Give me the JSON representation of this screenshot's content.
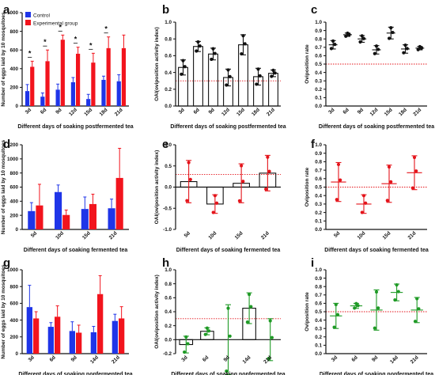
{
  "figure": {
    "background": "#ffffff"
  },
  "colors": {
    "control": "#1f35e8",
    "experimental": "#f2141d",
    "black": "#111111",
    "red": "#e4141b",
    "green": "#1f9a26",
    "threshold": "#e4141b"
  },
  "chart_data": [
    {
      "panel": "a",
      "type": "bar",
      "ylabel": "Number of eggs laid by 10 mosquitoes",
      "xlabel": "Different days of soaking  postfermented tea",
      "ylim": [
        0,
        1000
      ],
      "yticks": [
        "0",
        "200",
        "400",
        "600",
        "800",
        "1000"
      ],
      "categories": [
        "3d",
        "6d",
        "9d",
        "12d",
        "15d",
        "18d",
        "21d"
      ],
      "legend": [
        "Control",
        "Experimental group"
      ],
      "legend_position": "top-left",
      "series": [
        {
          "name": "Control",
          "values": [
            160,
            100,
            175,
            255,
            75,
            280,
            265
          ],
          "errors": [
            70,
            40,
            60,
            50,
            50,
            40,
            70
          ]
        },
        {
          "name": "Experimental group",
          "values": [
            420,
            480,
            710,
            560,
            465,
            620,
            620
          ],
          "errors": [
            60,
            120,
            50,
            70,
            100,
            120,
            140
          ]
        }
      ],
      "significance": [
        "*",
        "*",
        "*",
        "*",
        "*",
        "*",
        ""
      ]
    },
    {
      "panel": "b",
      "type": "bar",
      "ylabel": "OAI(oviposition activity index)",
      "xlabel": "Different days of soaking   postfermented tea",
      "ylim": [
        0,
        1.0
      ],
      "yticks": [
        "0.0",
        "0.2",
        "0.4",
        "0.6",
        "0.8",
        "1.0"
      ],
      "categories": [
        "3d",
        "6d",
        "9d",
        "12d",
        "15d",
        "18d",
        "21d"
      ],
      "values": [
        0.46,
        0.71,
        0.62,
        0.34,
        0.73,
        0.35,
        0.39
      ],
      "errors": [
        0.09,
        0.06,
        0.07,
        0.1,
        0.12,
        0.1,
        0.04
      ],
      "threshold": 0.3,
      "color": "black"
    },
    {
      "panel": "c",
      "type": "scatter",
      "ylabel": "Oviposition rate",
      "xlabel": "Different days of soaking   postfermented tea",
      "ylim": [
        0,
        1.0
      ],
      "yticks": [
        "0.0",
        "0.1",
        "0.2",
        "0.3",
        "0.4",
        "0.5",
        "0.6",
        "0.7",
        "0.8",
        "0.9",
        "1.0"
      ],
      "categories": [
        "3d",
        "6d",
        "9d",
        "12d",
        "15d",
        "18d",
        "21d"
      ],
      "values": [
        0.73,
        0.85,
        0.8,
        0.67,
        0.87,
        0.68,
        0.69
      ],
      "errors": [
        0.05,
        0.02,
        0.04,
        0.05,
        0.07,
        0.05,
        0.02
      ],
      "threshold": 0.5,
      "color": "black"
    },
    {
      "panel": "d",
      "type": "bar",
      "ylabel": "Number of eggs laid by 10 mosquitoes",
      "xlabel": "Different days of soaking fermented tea",
      "ylim": [
        0,
        1200
      ],
      "yticks": [
        "0",
        "200",
        "400",
        "600",
        "800",
        "1000",
        "1200"
      ],
      "categories": [
        "5d",
        "10d",
        "15d",
        "21d"
      ],
      "series": [
        {
          "name": "Control",
          "values": [
            260,
            530,
            290,
            300
          ],
          "errors": [
            120,
            100,
            170,
            130
          ]
        },
        {
          "name": "Experimental group",
          "values": [
            340,
            205,
            360,
            730
          ],
          "errors": [
            300,
            70,
            140,
            420
          ]
        }
      ]
    },
    {
      "panel": "e",
      "type": "bar",
      "ylabel": "OAI(oviposition activity index)",
      "xlabel": "Different days of soaking fermented tea",
      "ylim": [
        -1.0,
        1.0
      ],
      "yticks": [
        "-1.0",
        "-0.5",
        "0.0",
        "0.5",
        "1.0"
      ],
      "categories": [
        "5d",
        "10d",
        "15d",
        "21d"
      ],
      "values": [
        0.13,
        -0.4,
        0.09,
        0.33
      ],
      "errors": [
        0.5,
        0.22,
        0.46,
        0.42
      ],
      "threshold": 0.3,
      "color": "red"
    },
    {
      "panel": "f",
      "type": "scatter",
      "ylabel": "Oviposition rate",
      "xlabel": "Different days of soaking fermented tea",
      "ylim": [
        0,
        1.0
      ],
      "yticks": [
        "0.0",
        "0.1",
        "0.2",
        "0.3",
        "0.4",
        "0.5",
        "0.6",
        "0.7",
        "0.8",
        "0.9",
        "1.0"
      ],
      "categories": [
        "5d",
        "10d",
        "15d",
        "21d"
      ],
      "values": [
        0.56,
        0.3,
        0.54,
        0.67
      ],
      "errors": [
        0.23,
        0.11,
        0.22,
        0.2
      ],
      "threshold": 0.5,
      "color": "red"
    },
    {
      "panel": "g",
      "type": "bar",
      "ylabel": "Number of eggs laid by 10 mosquitoes",
      "xlabel": "Different days of soaking nonfermented tea",
      "ylim": [
        0,
        1000
      ],
      "yticks": [
        "0",
        "200",
        "400",
        "600",
        "800",
        "1000"
      ],
      "categories": [
        "3d",
        "6d",
        "9d",
        "14d",
        "21d"
      ],
      "series": [
        {
          "name": "Control",
          "values": [
            555,
            320,
            270,
            255,
            390
          ],
          "errors": [
            260,
            50,
            110,
            70,
            80
          ]
        },
        {
          "name": "Experimental group",
          "values": [
            420,
            440,
            250,
            710,
            420
          ],
          "errors": [
            80,
            130,
            90,
            220,
            140
          ]
        }
      ]
    },
    {
      "panel": "h",
      "type": "bar",
      "ylabel": "OAI(oviposition activity index)",
      "xlabel": "Different days of soaking nonfermented tea",
      "ylim": [
        -0.2,
        1.0
      ],
      "yticks": [
        "-0.2",
        "0.0",
        "0.2",
        "0.4",
        "0.6",
        "0.8",
        "1.0"
      ],
      "categories": [
        "3d",
        "6d",
        "9d",
        "14d",
        "21d"
      ],
      "values": [
        -0.07,
        0.12,
        0.0,
        0.45,
        0.0
      ],
      "errors": [
        0.12,
        0.05,
        0.5,
        0.22,
        0.3
      ],
      "threshold": 0.3,
      "color": "green"
    },
    {
      "panel": "i",
      "type": "scatter",
      "ylabel": "Oviposition rate",
      "xlabel": "Different days of soaking nonfermented tea",
      "ylim": [
        0,
        1.0
      ],
      "yticks": [
        "0.0",
        "0.1",
        "0.2",
        "0.3",
        "0.4",
        "0.5",
        "0.6",
        "0.7",
        "0.8",
        "0.9",
        "1.0"
      ],
      "categories": [
        "3d",
        "6d",
        "9d",
        "14d",
        "21d"
      ],
      "values": [
        0.45,
        0.57,
        0.52,
        0.73,
        0.52
      ],
      "errors": [
        0.15,
        0.03,
        0.24,
        0.1,
        0.15
      ],
      "threshold": 0.5,
      "color": "green"
    }
  ]
}
